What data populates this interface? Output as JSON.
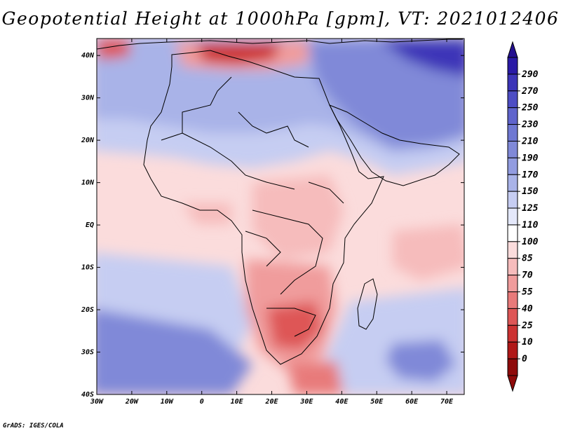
{
  "title": "Geopotential Height at 1000hPa [gpm], VT: 2021012406",
  "credit": "GrADS: IGES/COLA",
  "map": {
    "lon_range": [
      -30,
      75
    ],
    "lat_range": [
      -40,
      44
    ],
    "lon_ticks": [
      "30W",
      "20W",
      "10W",
      "0",
      "10E",
      "20E",
      "30E",
      "40E",
      "50E",
      "60E",
      "70E"
    ],
    "lon_tick_values": [
      -30,
      -20,
      -10,
      0,
      10,
      20,
      30,
      40,
      50,
      60,
      70
    ],
    "lat_ticks": [
      "40N",
      "30N",
      "20N",
      "10N",
      "EQ",
      "10S",
      "20S",
      "30S",
      "40S"
    ],
    "lat_tick_values": [
      40,
      30,
      20,
      10,
      0,
      -10,
      -20,
      -30,
      -40
    ]
  },
  "colorbar": {
    "labels": [
      "290",
      "270",
      "250",
      "230",
      "210",
      "190",
      "170",
      "150",
      "125",
      "110",
      "100",
      "85",
      "70",
      "55",
      "40",
      "25",
      "10",
      "0"
    ],
    "colors": [
      "#2a1aa6",
      "#3c34b8",
      "#4d4dc4",
      "#5f64cc",
      "#6f78d2",
      "#8089d8",
      "#929ce0",
      "#a9b3e8",
      "#c6cdf2",
      "#e4e8fa",
      "#ffffff",
      "#fbdcdc",
      "#f6bcbc",
      "#f09c9c",
      "#e87a7a",
      "#de5656",
      "#cc3232",
      "#b01818",
      "#8e0a0a"
    ],
    "top_color": "#241090",
    "bottom_color": "#8e0a0a"
  },
  "field_colors": {
    "deep_blue": "#3a2ab0",
    "blue": "#6f78d2",
    "light_blue": "#a9b3e8",
    "pale_blue": "#c6cdf2",
    "white": "#ffffff",
    "pale_red": "#fbdcdc",
    "light_red": "#f6bcbc",
    "red": "#e87a7a",
    "dark_red": "#cc3232"
  }
}
